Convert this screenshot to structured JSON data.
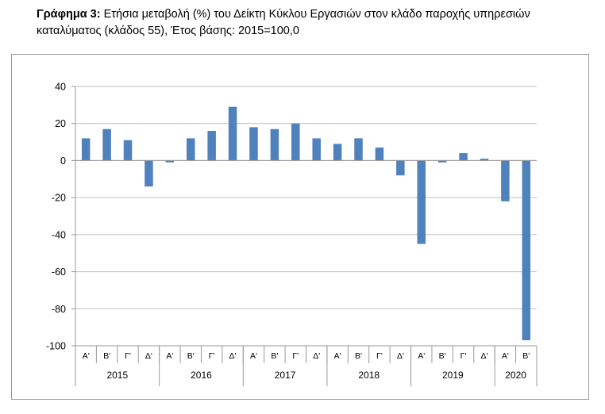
{
  "caption": {
    "lead": "Γράφημα 3:",
    "text": " Ετήσια μεταβολή (%) του Δείκτη Κύκλου Εργασιών στον κλάδο παροχής υπηρεσιών καταλύματος (κλάδος 55), Έτος βάσης: 2015=100,0"
  },
  "colors": {
    "bar": "#4f81bd",
    "axis": "#9a9a9a",
    "grid": "#bfbfbf"
  },
  "chart_data": {
    "type": "bar",
    "title": "Ετήσια μεταβολή (%) του Δείκτη Κύκλου Εργασιών στον κλάδο παροχής υπηρεσιών καταλύματος (κλάδος 55), Έτος βάσης: 2015=100,0",
    "xlabel": "",
    "ylabel": "",
    "ylim": [
      -100,
      40
    ],
    "yticks": [
      "40",
      "20",
      "0",
      "-20",
      "-40",
      "-60",
      "-80",
      "-100"
    ],
    "ytick_values": [
      40,
      20,
      0,
      -20,
      -40,
      -60,
      -80,
      -100
    ],
    "grid": true,
    "legend": "none",
    "categories": [
      "Α'",
      "Β'",
      "Γ'",
      "Δ'",
      "Α'",
      "Β'",
      "Γ'",
      "Δ'",
      "Α'",
      "Β'",
      "Γ'",
      "Δ'",
      "Α'",
      "Β'",
      "Γ'",
      "Δ'",
      "Α'",
      "Β'",
      "Γ'",
      "Δ'",
      "Α'",
      "Β'"
    ],
    "years": [
      {
        "label": "2015",
        "count": 4
      },
      {
        "label": "2016",
        "count": 4
      },
      {
        "label": "2017",
        "count": 4
      },
      {
        "label": "2018",
        "count": 4
      },
      {
        "label": "2019",
        "count": 4
      },
      {
        "label": "2020",
        "count": 2
      }
    ],
    "values": [
      12,
      17,
      11,
      -14,
      -1,
      12,
      16,
      29,
      18,
      17,
      20,
      12,
      9,
      12,
      7,
      -8,
      -45,
      -1,
      4,
      1,
      -22,
      -97
    ]
  }
}
